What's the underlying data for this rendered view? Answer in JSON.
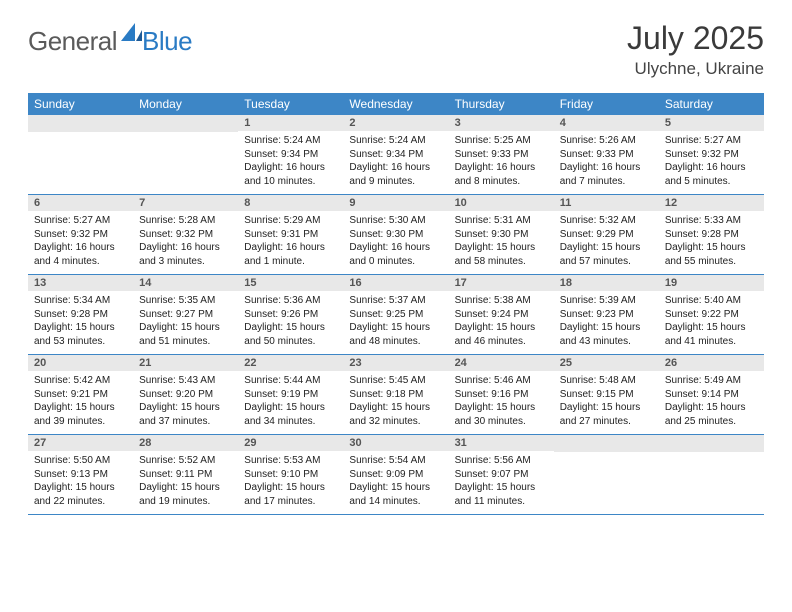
{
  "logo": {
    "general": "General",
    "blue": "Blue"
  },
  "title": "July 2025",
  "location": "Ulychne, Ukraine",
  "colors": {
    "header_bar": "#3d86c6",
    "daynum_bg": "#e8e8e8",
    "text": "#333333",
    "logo_gray": "#5a5a5a",
    "logo_blue": "#2a7bc4"
  },
  "days_of_week": [
    "Sunday",
    "Monday",
    "Tuesday",
    "Wednesday",
    "Thursday",
    "Friday",
    "Saturday"
  ],
  "weeks": [
    [
      null,
      null,
      {
        "n": "1",
        "sr": "Sunrise: 5:24 AM",
        "ss": "Sunset: 9:34 PM",
        "d1": "Daylight: 16 hours",
        "d2": "and 10 minutes."
      },
      {
        "n": "2",
        "sr": "Sunrise: 5:24 AM",
        "ss": "Sunset: 9:34 PM",
        "d1": "Daylight: 16 hours",
        "d2": "and 9 minutes."
      },
      {
        "n": "3",
        "sr": "Sunrise: 5:25 AM",
        "ss": "Sunset: 9:33 PM",
        "d1": "Daylight: 16 hours",
        "d2": "and 8 minutes."
      },
      {
        "n": "4",
        "sr": "Sunrise: 5:26 AM",
        "ss": "Sunset: 9:33 PM",
        "d1": "Daylight: 16 hours",
        "d2": "and 7 minutes."
      },
      {
        "n": "5",
        "sr": "Sunrise: 5:27 AM",
        "ss": "Sunset: 9:32 PM",
        "d1": "Daylight: 16 hours",
        "d2": "and 5 minutes."
      }
    ],
    [
      {
        "n": "6",
        "sr": "Sunrise: 5:27 AM",
        "ss": "Sunset: 9:32 PM",
        "d1": "Daylight: 16 hours",
        "d2": "and 4 minutes."
      },
      {
        "n": "7",
        "sr": "Sunrise: 5:28 AM",
        "ss": "Sunset: 9:32 PM",
        "d1": "Daylight: 16 hours",
        "d2": "and 3 minutes."
      },
      {
        "n": "8",
        "sr": "Sunrise: 5:29 AM",
        "ss": "Sunset: 9:31 PM",
        "d1": "Daylight: 16 hours",
        "d2": "and 1 minute."
      },
      {
        "n": "9",
        "sr": "Sunrise: 5:30 AM",
        "ss": "Sunset: 9:30 PM",
        "d1": "Daylight: 16 hours",
        "d2": "and 0 minutes."
      },
      {
        "n": "10",
        "sr": "Sunrise: 5:31 AM",
        "ss": "Sunset: 9:30 PM",
        "d1": "Daylight: 15 hours",
        "d2": "and 58 minutes."
      },
      {
        "n": "11",
        "sr": "Sunrise: 5:32 AM",
        "ss": "Sunset: 9:29 PM",
        "d1": "Daylight: 15 hours",
        "d2": "and 57 minutes."
      },
      {
        "n": "12",
        "sr": "Sunrise: 5:33 AM",
        "ss": "Sunset: 9:28 PM",
        "d1": "Daylight: 15 hours",
        "d2": "and 55 minutes."
      }
    ],
    [
      {
        "n": "13",
        "sr": "Sunrise: 5:34 AM",
        "ss": "Sunset: 9:28 PM",
        "d1": "Daylight: 15 hours",
        "d2": "and 53 minutes."
      },
      {
        "n": "14",
        "sr": "Sunrise: 5:35 AM",
        "ss": "Sunset: 9:27 PM",
        "d1": "Daylight: 15 hours",
        "d2": "and 51 minutes."
      },
      {
        "n": "15",
        "sr": "Sunrise: 5:36 AM",
        "ss": "Sunset: 9:26 PM",
        "d1": "Daylight: 15 hours",
        "d2": "and 50 minutes."
      },
      {
        "n": "16",
        "sr": "Sunrise: 5:37 AM",
        "ss": "Sunset: 9:25 PM",
        "d1": "Daylight: 15 hours",
        "d2": "and 48 minutes."
      },
      {
        "n": "17",
        "sr": "Sunrise: 5:38 AM",
        "ss": "Sunset: 9:24 PM",
        "d1": "Daylight: 15 hours",
        "d2": "and 46 minutes."
      },
      {
        "n": "18",
        "sr": "Sunrise: 5:39 AM",
        "ss": "Sunset: 9:23 PM",
        "d1": "Daylight: 15 hours",
        "d2": "and 43 minutes."
      },
      {
        "n": "19",
        "sr": "Sunrise: 5:40 AM",
        "ss": "Sunset: 9:22 PM",
        "d1": "Daylight: 15 hours",
        "d2": "and 41 minutes."
      }
    ],
    [
      {
        "n": "20",
        "sr": "Sunrise: 5:42 AM",
        "ss": "Sunset: 9:21 PM",
        "d1": "Daylight: 15 hours",
        "d2": "and 39 minutes."
      },
      {
        "n": "21",
        "sr": "Sunrise: 5:43 AM",
        "ss": "Sunset: 9:20 PM",
        "d1": "Daylight: 15 hours",
        "d2": "and 37 minutes."
      },
      {
        "n": "22",
        "sr": "Sunrise: 5:44 AM",
        "ss": "Sunset: 9:19 PM",
        "d1": "Daylight: 15 hours",
        "d2": "and 34 minutes."
      },
      {
        "n": "23",
        "sr": "Sunrise: 5:45 AM",
        "ss": "Sunset: 9:18 PM",
        "d1": "Daylight: 15 hours",
        "d2": "and 32 minutes."
      },
      {
        "n": "24",
        "sr": "Sunrise: 5:46 AM",
        "ss": "Sunset: 9:16 PM",
        "d1": "Daylight: 15 hours",
        "d2": "and 30 minutes."
      },
      {
        "n": "25",
        "sr": "Sunrise: 5:48 AM",
        "ss": "Sunset: 9:15 PM",
        "d1": "Daylight: 15 hours",
        "d2": "and 27 minutes."
      },
      {
        "n": "26",
        "sr": "Sunrise: 5:49 AM",
        "ss": "Sunset: 9:14 PM",
        "d1": "Daylight: 15 hours",
        "d2": "and 25 minutes."
      }
    ],
    [
      {
        "n": "27",
        "sr": "Sunrise: 5:50 AM",
        "ss": "Sunset: 9:13 PM",
        "d1": "Daylight: 15 hours",
        "d2": "and 22 minutes."
      },
      {
        "n": "28",
        "sr": "Sunrise: 5:52 AM",
        "ss": "Sunset: 9:11 PM",
        "d1": "Daylight: 15 hours",
        "d2": "and 19 minutes."
      },
      {
        "n": "29",
        "sr": "Sunrise: 5:53 AM",
        "ss": "Sunset: 9:10 PM",
        "d1": "Daylight: 15 hours",
        "d2": "and 17 minutes."
      },
      {
        "n": "30",
        "sr": "Sunrise: 5:54 AM",
        "ss": "Sunset: 9:09 PM",
        "d1": "Daylight: 15 hours",
        "d2": "and 14 minutes."
      },
      {
        "n": "31",
        "sr": "Sunrise: 5:56 AM",
        "ss": "Sunset: 9:07 PM",
        "d1": "Daylight: 15 hours",
        "d2": "and 11 minutes."
      },
      null,
      null
    ]
  ]
}
